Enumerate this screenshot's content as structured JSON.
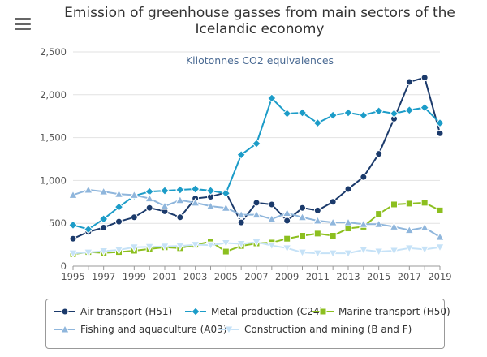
{
  "header": {
    "menu_icon": "hamburger-menu-icon",
    "title_line1": "Emission of greenhouse gasses from main sectors of the",
    "title_line2": "Icelandic economy",
    "subtitle": "Kilotonnes CO2 equivalences"
  },
  "chart_data": {
    "type": "line",
    "title": "Emission of greenhouse gasses from main sectors of the Icelandic economy",
    "subtitle": "Kilotonnes CO2 equivalences",
    "xlabel": "",
    "ylabel": "",
    "x": [
      1995,
      1996,
      1997,
      1998,
      1999,
      2000,
      2001,
      2002,
      2003,
      2004,
      2005,
      2006,
      2007,
      2008,
      2009,
      2010,
      2011,
      2012,
      2013,
      2014,
      2015,
      2016,
      2017,
      2018,
      2019
    ],
    "xticks": [
      "1995",
      "1997",
      "1999",
      "2001",
      "2003",
      "2005",
      "2007",
      "2009",
      "2011",
      "2013",
      "2015",
      "2017",
      "2019"
    ],
    "yticks": [
      "0",
      "500",
      "1,000",
      "1,500",
      "2,000",
      "2,500"
    ],
    "ylim": [
      0,
      2500
    ],
    "grid": true,
    "legend_position": "bottom",
    "series": [
      {
        "name": "Air transport (H51)",
        "color": "#1b3a6b",
        "marker": "circle",
        "values": [
          320,
          400,
          450,
          520,
          570,
          680,
          640,
          570,
          790,
          810,
          860,
          510,
          740,
          720,
          530,
          680,
          650,
          750,
          900,
          1040,
          1310,
          1720,
          2150,
          2200,
          1550
        ]
      },
      {
        "name": "Metal production (C24)",
        "color": "#1c9cc8",
        "marker": "diamond",
        "values": [
          480,
          430,
          550,
          690,
          820,
          870,
          880,
          890,
          900,
          880,
          850,
          1300,
          1430,
          1960,
          1780,
          1790,
          1670,
          1760,
          1790,
          1760,
          1810,
          1780,
          1820,
          1850,
          1670
        ]
      },
      {
        "name": "Marine transport (H50)",
        "color": "#8cbf1f",
        "marker": "square",
        "values": [
          140,
          165,
          155,
          165,
          180,
          200,
          220,
          210,
          250,
          285,
          170,
          235,
          265,
          275,
          320,
          355,
          380,
          355,
          440,
          460,
          610,
          720,
          730,
          740,
          650
        ]
      },
      {
        "name": "Fishing and aquaculture (A03)",
        "color": "#8fb6dc",
        "marker": "triangle",
        "values": [
          830,
          890,
          870,
          840,
          830,
          790,
          700,
          770,
          740,
          700,
          680,
          600,
          600,
          550,
          620,
          570,
          530,
          510,
          510,
          490,
          490,
          460,
          420,
          450,
          340
        ]
      },
      {
        "name": "Construction and mining (B and F)",
        "color": "#c6e2f7",
        "marker": "triangle-down",
        "values": [
          150,
          160,
          175,
          190,
          220,
          225,
          230,
          235,
          250,
          245,
          270,
          260,
          280,
          240,
          210,
          160,
          150,
          150,
          150,
          190,
          170,
          180,
          210,
          195,
          220
        ]
      }
    ]
  }
}
